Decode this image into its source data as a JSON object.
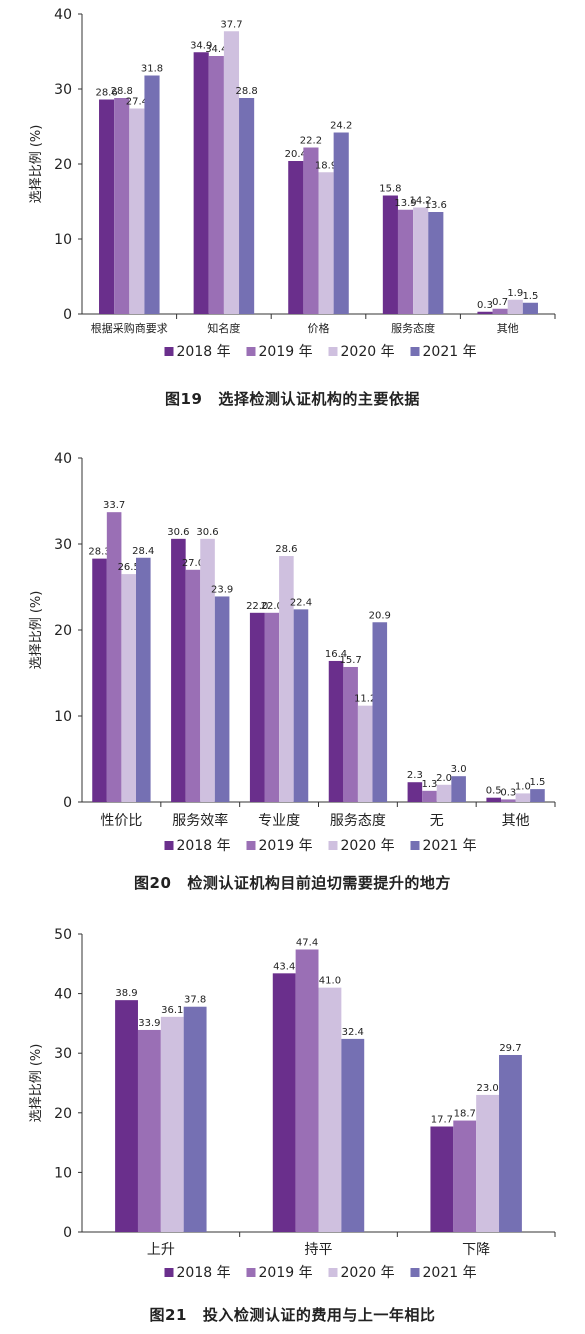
{
  "colors": {
    "2018": "#6a2f8c",
    "2019": "#9a6fb5",
    "2020": "#cfc0df",
    "2021": "#7570b3",
    "axis": "#333333",
    "text": "#222222"
  },
  "chart_data": [
    {
      "type": "bar",
      "caption_num": "图19",
      "caption_text": "选择检测认证机构的主要依据",
      "ylabel": "选择比例 (%)",
      "ylim": [
        0,
        40
      ],
      "yticks": [
        0,
        10,
        20,
        30,
        40
      ],
      "legend_position": "bottom",
      "categories": [
        "根据采购商要求",
        "知名度",
        "价格",
        "服务态度",
        "其他"
      ],
      "series": [
        {
          "name": "2018 年",
          "values": [
            28.6,
            34.9,
            20.4,
            15.8,
            0.3
          ]
        },
        {
          "name": "2019 年",
          "values": [
            28.8,
            34.4,
            22.2,
            13.9,
            0.7
          ]
        },
        {
          "name": "2020 年",
          "values": [
            27.4,
            37.7,
            18.9,
            14.2,
            1.9
          ]
        },
        {
          "name": "2021 年",
          "values": [
            31.8,
            28.8,
            24.2,
            13.6,
            1.5
          ]
        }
      ],
      "labels": [
        [
          "28.6",
          "34.9",
          "20.4",
          "15.8",
          "0.3"
        ],
        [
          "28.8",
          "34.4",
          "22.2",
          "13.9",
          "0.7"
        ],
        [
          "27.4",
          "37.7",
          "18.9",
          "14.2",
          "1.9"
        ],
        [
          "31.8",
          "28.8",
          "24.2",
          "13.6",
          "1.5"
        ]
      ]
    },
    {
      "type": "bar",
      "caption_num": "图20",
      "caption_text": "检测认证机构目前迫切需要提升的地方",
      "ylabel": "选择比例 (%)",
      "ylim": [
        0,
        40
      ],
      "yticks": [
        0,
        10,
        20,
        30,
        40
      ],
      "legend_position": "bottom",
      "categories": [
        "性价比",
        "服务效率",
        "专业度",
        "服务态度",
        "无",
        "其他"
      ],
      "series": [
        {
          "name": "2018 年",
          "values": [
            28.3,
            30.6,
            22.0,
            16.4,
            2.3,
            0.5
          ]
        },
        {
          "name": "2019 年",
          "values": [
            33.7,
            27.0,
            22.0,
            15.7,
            1.3,
            0.3
          ]
        },
        {
          "name": "2020 年",
          "values": [
            26.5,
            30.6,
            28.6,
            11.2,
            2.0,
            1.0
          ]
        },
        {
          "name": "2021 年",
          "values": [
            28.4,
            23.9,
            22.4,
            20.9,
            3.0,
            1.5
          ]
        }
      ],
      "labels": [
        [
          "28.3",
          "30.6",
          "22.0",
          "16.4",
          "2.3",
          "0.5"
        ],
        [
          "33.7",
          "27.0",
          "22.0",
          "15.7",
          "1.3",
          "0.3"
        ],
        [
          "26.5",
          "30.6",
          "28.6",
          "11.2",
          "2.0",
          "1.0"
        ],
        [
          "28.4",
          "23.9",
          "22.4",
          "20.9",
          "3.0",
          "1.5"
        ]
      ]
    },
    {
      "type": "bar",
      "caption_num": "图21",
      "caption_text": "投入检测认证的费用与上一年相比",
      "ylabel": "选择比例 (%)",
      "ylim": [
        0,
        50
      ],
      "yticks": [
        0,
        10,
        20,
        30,
        40,
        50
      ],
      "legend_position": "bottom",
      "categories": [
        "上升",
        "持平",
        "下降"
      ],
      "series": [
        {
          "name": "2018 年",
          "values": [
            38.9,
            43.4,
            17.7
          ]
        },
        {
          "name": "2019 年",
          "values": [
            33.9,
            47.4,
            18.7
          ]
        },
        {
          "name": "2020 年",
          "values": [
            36.1,
            41.0,
            23.0
          ]
        },
        {
          "name": "2021 年",
          "values": [
            37.8,
            32.4,
            29.7
          ]
        }
      ],
      "labels": [
        [
          "38.9",
          "43.4",
          "17.7"
        ],
        [
          "33.9",
          "47.4",
          "18.7"
        ],
        [
          "36.1",
          "41.0",
          "23.0"
        ],
        [
          "37.8",
          "32.4",
          "29.7"
        ]
      ]
    }
  ]
}
